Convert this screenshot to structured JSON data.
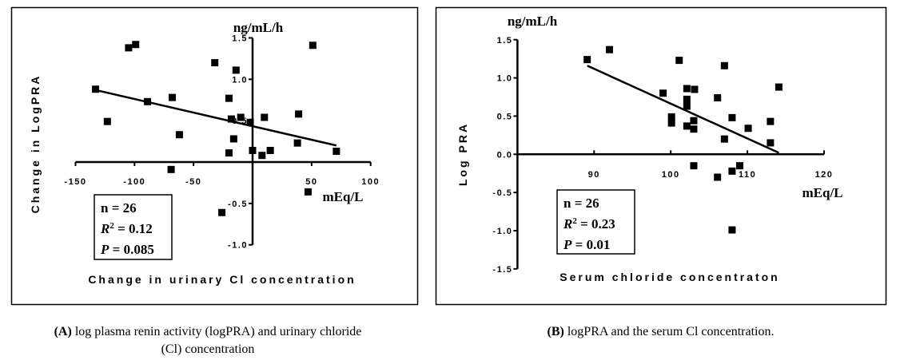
{
  "chart_data": [
    {
      "type": "scatter",
      "panel": "A",
      "ylabel": "Change in LogPRA",
      "xlabel": "Change in urinary Cl concentration",
      "y_unit": "ng/mL/h",
      "x_unit": "mEq/L",
      "xlim": [
        -150,
        100
      ],
      "ylim": [
        -1.0,
        1.5
      ],
      "x_ticks": [
        "-150",
        "-100",
        "-50",
        "50",
        "100"
      ],
      "x_tick_values": [
        -150,
        -100,
        -50,
        50,
        100
      ],
      "y_ticks": [
        "1.5",
        "1.0",
        "0.5",
        "-0.5",
        "-1.0"
      ],
      "y_tick_values": [
        1.5,
        1.0,
        0.5,
        -0.5,
        -1.0
      ],
      "points": [
        [
          -105,
          1.38
        ],
        [
          -99,
          1.42
        ],
        [
          -133,
          0.88
        ],
        [
          -123,
          0.49
        ],
        [
          -89,
          0.73
        ],
        [
          -68,
          0.78
        ],
        [
          -62,
          0.33
        ],
        [
          -69,
          -0.09
        ],
        [
          -32,
          1.2
        ],
        [
          -14,
          1.11
        ],
        [
          -20,
          0.77
        ],
        [
          -18,
          0.52
        ],
        [
          -10,
          0.54
        ],
        [
          -16,
          0.28
        ],
        [
          -20,
          0.11
        ],
        [
          -2,
          0.48
        ],
        [
          0,
          0.14
        ],
        [
          8,
          0.08
        ],
        [
          15,
          0.14
        ],
        [
          10,
          0.54
        ],
        [
          39,
          0.58
        ],
        [
          38,
          0.23
        ],
        [
          51,
          1.41
        ],
        [
          71,
          0.13
        ],
        [
          47,
          -0.36
        ],
        [
          -26,
          -0.61
        ]
      ],
      "trendline": [
        [
          -133,
          0.87
        ],
        [
          71,
          0.2
        ]
      ],
      "stats": {
        "n": "n = 26",
        "r2_label": "R",
        "r2_sup": "2",
        "r2_value": " = 0.12",
        "p_label": "P",
        "p_value": " = 0.085"
      },
      "caption_bold": "(A)",
      "caption_line1": " log plasma renin activity (logPRA) and urinary chloride",
      "caption_line2": "(Cl) concentration"
    },
    {
      "type": "scatter",
      "panel": "B",
      "ylabel": "Log PRA",
      "xlabel": "Serum chloride concentraton",
      "y_unit": "ng/mL/h",
      "x_unit": "mEq/L",
      "xlim": [
        80,
        120
      ],
      "ylim": [
        -1.5,
        1.5
      ],
      "x_ticks": [
        "90",
        "100",
        "110",
        "120"
      ],
      "x_tick_values": [
        90,
        100,
        110,
        120
      ],
      "y_ticks": [
        "1.5",
        "1.0",
        "0.5",
        "0.0",
        "-0.5",
        "-1.0",
        "-1.5"
      ],
      "y_tick_values": [
        1.5,
        1.0,
        0.5,
        0.0,
        -0.5,
        -1.0,
        -1.5
      ],
      "points": [
        [
          89.1,
          1.24
        ],
        [
          92.0,
          1.37
        ],
        [
          101.1,
          1.23
        ],
        [
          107.0,
          1.16
        ],
        [
          114.1,
          0.88
        ],
        [
          99.0,
          0.8
        ],
        [
          102.1,
          0.86
        ],
        [
          103.1,
          0.85
        ],
        [
          102.1,
          0.72
        ],
        [
          102.1,
          0.63
        ],
        [
          106.1,
          0.74
        ],
        [
          100.1,
          0.49
        ],
        [
          100.1,
          0.41
        ],
        [
          102.1,
          0.37
        ],
        [
          103.0,
          0.44
        ],
        [
          103.0,
          0.33
        ],
        [
          108.0,
          0.48
        ],
        [
          110.1,
          0.34
        ],
        [
          113.0,
          0.43
        ],
        [
          113.0,
          0.15
        ],
        [
          107.0,
          0.2
        ],
        [
          103.0,
          -0.15
        ],
        [
          106.1,
          -0.3
        ],
        [
          108.0,
          -0.22
        ],
        [
          109.0,
          -0.15
        ],
        [
          108.0,
          -0.99
        ]
      ],
      "trendline": [
        [
          89.1,
          1.16
        ],
        [
          114.1,
          0.02
        ]
      ],
      "stats": {
        "n": "n = 26",
        "r2_label": "R",
        "r2_sup": "2",
        "r2_value": " = 0.23",
        "p_label": "P",
        "p_value": " = 0.01"
      },
      "caption_bold": "(B)",
      "caption_line1": " logPRA and the serum Cl concentration.",
      "caption_line2": ""
    }
  ]
}
